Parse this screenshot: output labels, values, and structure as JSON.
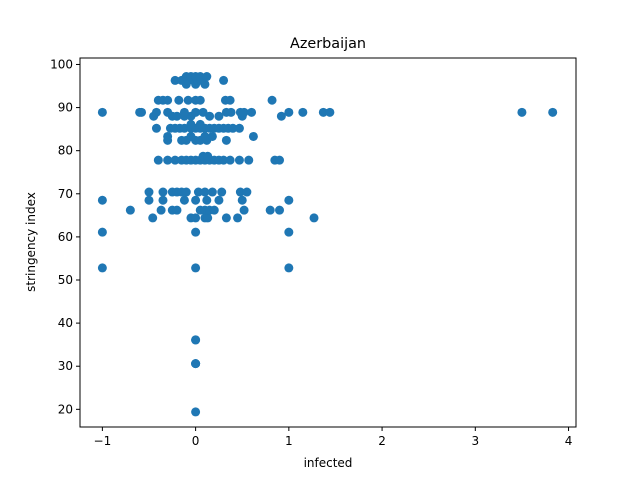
{
  "chart_data": {
    "type": "scatter",
    "title": "Azerbaijan",
    "xlabel": "infected",
    "ylabel": "stringency index",
    "xlim": [
      -1.24,
      4.08
    ],
    "ylim": [
      15.9,
      101.5
    ],
    "xticks": [
      -1,
      0,
      1,
      2,
      3,
      4
    ],
    "yticks": [
      20,
      30,
      40,
      50,
      60,
      70,
      80,
      90,
      100
    ],
    "grid": false,
    "marker_color": "#1f77b4",
    "points": [
      [
        0,
        19.4
      ],
      [
        0,
        30.6
      ],
      [
        0,
        30.6
      ],
      [
        0,
        30.6
      ],
      [
        0,
        36.1
      ],
      [
        0,
        36.1
      ],
      [
        -1,
        52.8
      ],
      [
        0,
        52.8
      ],
      [
        1,
        52.8
      ],
      [
        -1,
        61.1
      ],
      [
        0,
        61.1
      ],
      [
        1,
        61.1
      ],
      [
        -0.46,
        64.4
      ],
      [
        -0.05,
        64.4
      ],
      [
        0,
        64.4
      ],
      [
        0.1,
        64.4
      ],
      [
        0.13,
        64.4
      ],
      [
        0.33,
        64.4
      ],
      [
        0.45,
        64.4
      ],
      [
        1.27,
        64.4
      ],
      [
        -0.7,
        66.2
      ],
      [
        -0.37,
        66.2
      ],
      [
        -0.25,
        66.2
      ],
      [
        -0.2,
        66.2
      ],
      [
        0.05,
        66.2
      ],
      [
        0.1,
        66.2
      ],
      [
        0.15,
        66.2
      ],
      [
        0.2,
        66.2
      ],
      [
        0.52,
        66.2
      ],
      [
        0.8,
        66.2
      ],
      [
        0.9,
        66.2
      ],
      [
        -1,
        68.5
      ],
      [
        -0.5,
        68.5
      ],
      [
        -0.35,
        68.5
      ],
      [
        -0.12,
        68.5
      ],
      [
        0,
        68.5
      ],
      [
        0.12,
        68.5
      ],
      [
        0.25,
        68.5
      ],
      [
        0.5,
        68.5
      ],
      [
        1,
        68.5
      ],
      [
        -0.5,
        70.4
      ],
      [
        -0.35,
        70.4
      ],
      [
        -0.25,
        70.4
      ],
      [
        -0.2,
        70.4
      ],
      [
        -0.15,
        70.4
      ],
      [
        -0.1,
        70.4
      ],
      [
        0.03,
        70.4
      ],
      [
        0.1,
        70.4
      ],
      [
        0.18,
        70.4
      ],
      [
        0.28,
        70.4
      ],
      [
        0.48,
        70.4
      ],
      [
        0.55,
        70.4
      ],
      [
        -0.4,
        77.8
      ],
      [
        -0.3,
        77.8
      ],
      [
        -0.22,
        77.8
      ],
      [
        -0.15,
        77.8
      ],
      [
        -0.1,
        77.8
      ],
      [
        -0.05,
        77.8
      ],
      [
        0,
        77.8
      ],
      [
        0.05,
        77.8
      ],
      [
        0.1,
        77.8
      ],
      [
        0.15,
        77.8
      ],
      [
        0.2,
        77.8
      ],
      [
        0.25,
        77.8
      ],
      [
        0.3,
        77.8
      ],
      [
        0.37,
        77.8
      ],
      [
        0.47,
        77.8
      ],
      [
        0.57,
        77.8
      ],
      [
        0.85,
        77.8
      ],
      [
        0.9,
        77.8
      ],
      [
        0.08,
        78.7
      ],
      [
        0.13,
        78.7
      ],
      [
        -0.3,
        82.4
      ],
      [
        -0.15,
        82.4
      ],
      [
        -0.1,
        82.4
      ],
      [
        0,
        82.4
      ],
      [
        0.05,
        82.4
      ],
      [
        0.12,
        82.4
      ],
      [
        0.33,
        82.4
      ],
      [
        -0.3,
        83.3
      ],
      [
        -0.05,
        83.3
      ],
      [
        0.1,
        83.3
      ],
      [
        0.18,
        83.3
      ],
      [
        0.62,
        83.3
      ],
      [
        -0.42,
        85.2
      ],
      [
        -0.27,
        85.2
      ],
      [
        -0.22,
        85.2
      ],
      [
        -0.17,
        85.2
      ],
      [
        -0.12,
        85.2
      ],
      [
        -0.05,
        85.2
      ],
      [
        0,
        85.2
      ],
      [
        0.05,
        85.2
      ],
      [
        0.1,
        85.2
      ],
      [
        0.15,
        85.2
      ],
      [
        0.2,
        85.2
      ],
      [
        0.25,
        85.2
      ],
      [
        0.3,
        85.2
      ],
      [
        0.35,
        85.2
      ],
      [
        0.4,
        85.2
      ],
      [
        0.47,
        85.2
      ],
      [
        -0.05,
        86.1
      ],
      [
        0.05,
        86.1
      ],
      [
        -0.45,
        88
      ],
      [
        -0.25,
        88
      ],
      [
        -0.2,
        88
      ],
      [
        -0.12,
        88
      ],
      [
        -0.05,
        88
      ],
      [
        0.15,
        88
      ],
      [
        0.25,
        88
      ],
      [
        0.5,
        88
      ],
      [
        0.92,
        88
      ],
      [
        -1,
        88.9
      ],
      [
        -0.6,
        88.9
      ],
      [
        -0.58,
        88.9
      ],
      [
        -0.42,
        88.9
      ],
      [
        -0.3,
        88.9
      ],
      [
        -0.12,
        88.9
      ],
      [
        0,
        88.9
      ],
      [
        0.08,
        88.9
      ],
      [
        0.33,
        88.9
      ],
      [
        0.38,
        88.9
      ],
      [
        0.48,
        88.9
      ],
      [
        0.52,
        88.9
      ],
      [
        0.6,
        88.9
      ],
      [
        1,
        88.9
      ],
      [
        1.15,
        88.9
      ],
      [
        1.37,
        88.9
      ],
      [
        1.44,
        88.9
      ],
      [
        3.5,
        88.9
      ],
      [
        3.83,
        88.9
      ],
      [
        -0.4,
        91.7
      ],
      [
        -0.35,
        91.7
      ],
      [
        -0.3,
        91.7
      ],
      [
        -0.18,
        91.7
      ],
      [
        -0.08,
        91.7
      ],
      [
        0,
        91.7
      ],
      [
        0.05,
        91.7
      ],
      [
        0.32,
        91.7
      ],
      [
        0.37,
        91.7
      ],
      [
        0.82,
        91.7
      ],
      [
        -0.1,
        95.4
      ],
      [
        0,
        95.4
      ],
      [
        0.1,
        95.4
      ],
      [
        -0.22,
        96.3
      ],
      [
        -0.15,
        96.3
      ],
      [
        -0.08,
        96.3
      ],
      [
        -0.02,
        96.3
      ],
      [
        0.02,
        96.3
      ],
      [
        0.06,
        96.3
      ],
      [
        0.3,
        96.3
      ],
      [
        -0.1,
        97.2
      ],
      [
        -0.05,
        97.2
      ],
      [
        0,
        97.2
      ],
      [
        0.05,
        97.2
      ],
      [
        0.12,
        97.2
      ]
    ]
  }
}
